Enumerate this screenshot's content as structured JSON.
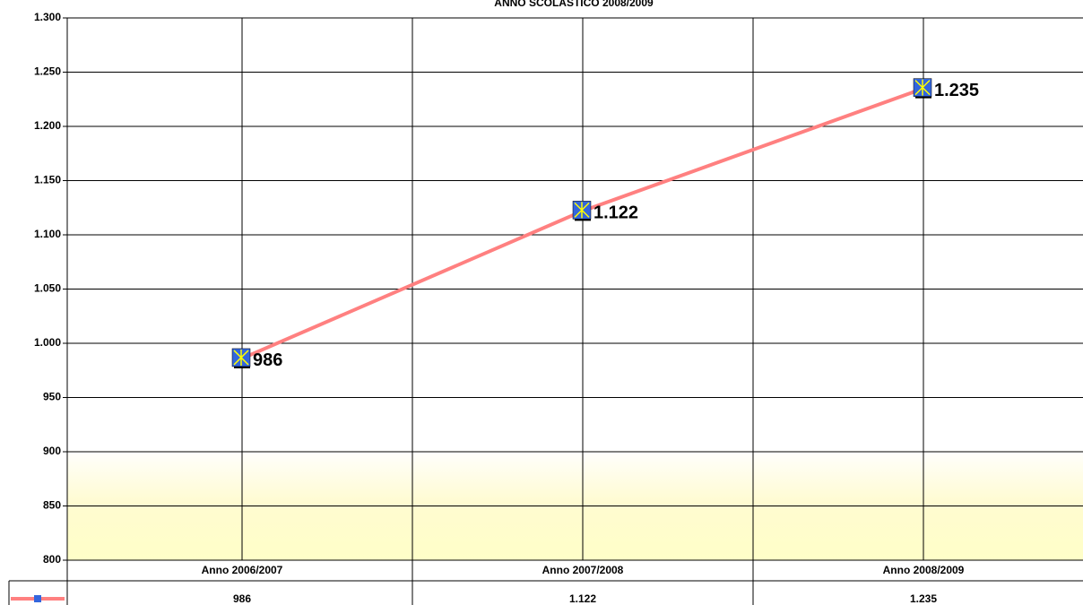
{
  "chart_data": {
    "type": "line",
    "title": "ANNO SCOLASTICO 2008/2009",
    "categories": [
      "Anno 2006/2007",
      "Anno 2007/2008",
      "Anno 2008/2009"
    ],
    "series": [
      {
        "color": "#ff8080",
        "values": [
          986,
          1122,
          1235
        ],
        "value_labels": [
          "986",
          "1.122",
          "1.235"
        ]
      }
    ],
    "ylim": [
      800,
      1300
    ],
    "yticks": [
      800,
      850,
      900,
      950,
      {
        "value": 1000,
        "label": "1.000"
      },
      {
        "value": 1050,
        "label": "1.050"
      },
      {
        "value": 1100,
        "label": "1.100"
      },
      {
        "value": 1150,
        "label": "1.150"
      },
      {
        "value": 1200,
        "label": "1.200"
      },
      {
        "value": 1250,
        "label": "1.250"
      },
      {
        "value": 1300,
        "label": "1.300"
      }
    ],
    "grid": true
  }
}
